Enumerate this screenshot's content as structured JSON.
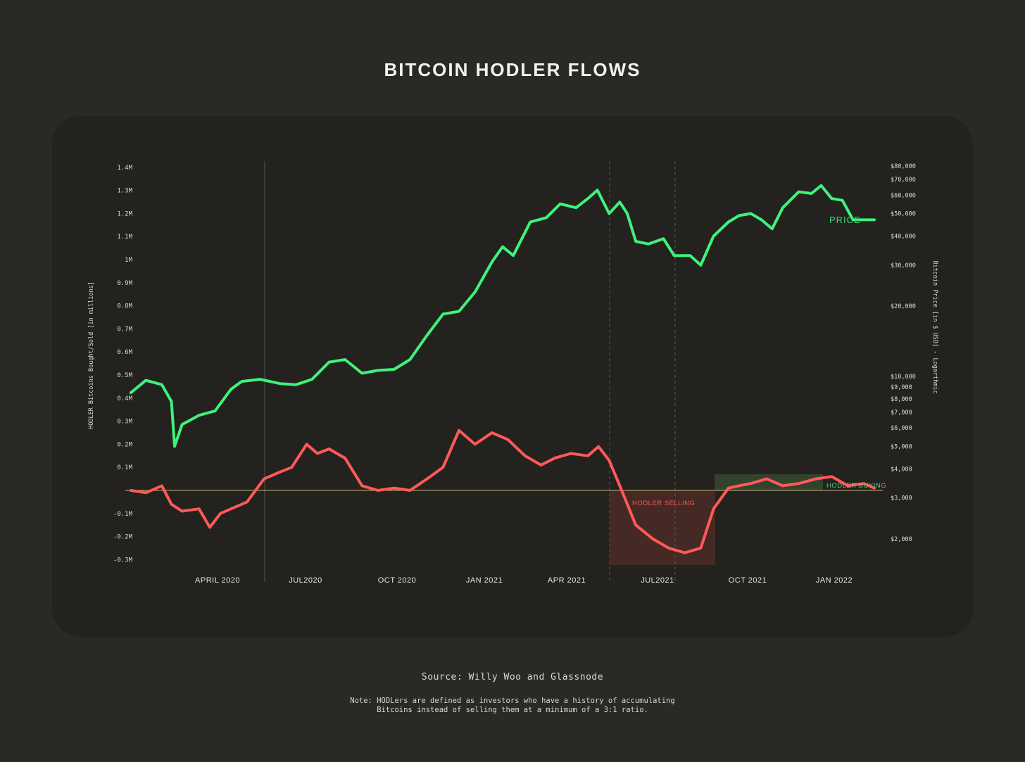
{
  "page": {
    "title": "BITCOIN HODLER FLOWS",
    "source": "Source: Willy Woo and Glassnode",
    "note_line1": "Note: HODLers are defined as investors who have a history of accumulating",
    "note_line2": "Bitcoins instead of selling them at a minimum of a 3:1 ratio."
  },
  "colors": {
    "background": "#2a2925",
    "panel": "#23221f",
    "price_line": "#3ff27a",
    "flow_line": "#ff5a57",
    "zero_line": "#c9b27a",
    "selling_zone": "#4a2a26",
    "buying_zone": "#35462f",
    "text": "#e8e8e2"
  },
  "chart_data": {
    "type": "line",
    "title": "BITCOIN HODLER FLOWS",
    "ylabel_left": "HODLER Bitcoins Bought/Sold [in millions]",
    "ylabel_right": "Bitcoin Price [in $ USD] - Logarthmic",
    "left_ticks": [
      "1.4M",
      "1.3M",
      "1.2M",
      "1.1M",
      "1M",
      "0.9M",
      "0.8M",
      "0.7M",
      "0.6M",
      "0.5M",
      "0.4M",
      "0.3M",
      "0.2M",
      "0.1M",
      "-0.1M",
      "-0.2M",
      "-0.3M"
    ],
    "right_ticks": [
      "$80,000",
      "$70,000",
      "$60,000",
      "$50,000",
      "$40,000",
      "$30,000",
      "$20,000",
      "$10,000",
      "$9,000",
      "$8,000",
      "$7,000",
      "$6,000",
      "$5,000",
      "$4,000",
      "$3,000",
      "$2,000"
    ],
    "x_ticks": [
      "APRIL 2020",
      "JUL2020",
      "OCT 2020",
      "JAN 2021",
      "APR 2021",
      "JUL2021",
      "OCT 2021",
      "JAN 2022"
    ],
    "ylim_left": [
      -0.3,
      1.4
    ],
    "yscale_right": "log",
    "annotations": {
      "price_label": "PRICE",
      "selling_label": "HODLER SELLING",
      "buying_label": "HODLER BUYING"
    },
    "series": [
      {
        "name": "PRICE",
        "unit": "USD",
        "x": [
          "2020-02-01",
          "2020-02-15",
          "2020-03-01",
          "2020-03-10",
          "2020-03-13",
          "2020-03-20",
          "2020-04-05",
          "2020-04-20",
          "2020-05-05",
          "2020-05-15",
          "2020-06-01",
          "2020-06-20",
          "2020-07-05",
          "2020-07-20",
          "2020-08-05",
          "2020-08-20",
          "2020-09-05",
          "2020-09-20",
          "2020-10-05",
          "2020-10-20",
          "2020-11-05",
          "2020-11-20",
          "2020-12-05",
          "2020-12-20",
          "2021-01-05",
          "2021-01-15",
          "2021-01-25",
          "2021-02-10",
          "2021-02-25",
          "2021-03-10",
          "2021-03-25",
          "2021-04-05",
          "2021-04-14",
          "2021-04-25",
          "2021-05-05",
          "2021-05-12",
          "2021-05-20",
          "2021-06-01",
          "2021-06-15",
          "2021-06-25",
          "2021-07-10",
          "2021-07-20",
          "2021-08-01",
          "2021-08-15",
          "2021-08-25",
          "2021-09-05",
          "2021-09-15",
          "2021-09-25",
          "2021-10-05",
          "2021-10-20",
          "2021-11-01",
          "2021-11-10",
          "2021-11-20",
          "2021-11-30",
          "2021-12-10",
          "2021-12-20",
          "2021-12-30"
        ],
        "values": [
          8500,
          9600,
          9200,
          7800,
          5000,
          6200,
          6800,
          7100,
          8800,
          9500,
          9700,
          9300,
          9200,
          9700,
          11500,
          11800,
          10300,
          10600,
          10700,
          11800,
          15000,
          18500,
          19000,
          23000,
          31000,
          36000,
          33000,
          46000,
          48000,
          55000,
          53000,
          58000,
          63000,
          50000,
          56000,
          50000,
          38000,
          37000,
          39000,
          33000,
          33000,
          30000,
          40000,
          46000,
          49000,
          50000,
          47000,
          43000,
          53000,
          62000,
          61000,
          66000,
          58000,
          57000,
          47000,
          47000,
          47000
        ]
      },
      {
        "name": "HODLER Bitcoins Bought/Sold",
        "unit": "millions BTC",
        "x": [
          "2020-02-01",
          "2020-02-15",
          "2020-03-01",
          "2020-03-10",
          "2020-03-20",
          "2020-04-05",
          "2020-04-15",
          "2020-04-25",
          "2020-05-05",
          "2020-05-20",
          "2020-06-05",
          "2020-06-20",
          "2020-07-01",
          "2020-07-15",
          "2020-07-25",
          "2020-08-05",
          "2020-08-20",
          "2020-09-05",
          "2020-09-20",
          "2020-10-05",
          "2020-10-20",
          "2020-11-05",
          "2020-11-20",
          "2020-12-05",
          "2020-12-20",
          "2021-01-05",
          "2021-01-20",
          "2021-02-05",
          "2021-02-20",
          "2021-03-05",
          "2021-03-20",
          "2021-04-05",
          "2021-04-15",
          "2021-04-25",
          "2021-05-05",
          "2021-05-20",
          "2021-06-05",
          "2021-06-20",
          "2021-07-05",
          "2021-07-20",
          "2021-08-01",
          "2021-08-15",
          "2021-08-25",
          "2021-09-05",
          "2021-09-20",
          "2021-10-05",
          "2021-10-20",
          "2021-11-05",
          "2021-11-20",
          "2021-12-05",
          "2021-12-20",
          "2021-12-30"
        ],
        "values": [
          0.0,
          -0.01,
          0.02,
          -0.06,
          -0.09,
          -0.08,
          -0.16,
          -0.1,
          -0.08,
          -0.05,
          0.05,
          0.08,
          0.1,
          0.2,
          0.16,
          0.18,
          0.14,
          0.02,
          0.0,
          0.01,
          0.0,
          0.05,
          0.1,
          0.26,
          0.2,
          0.25,
          0.22,
          0.15,
          0.11,
          0.14,
          0.16,
          0.15,
          0.19,
          0.13,
          0.02,
          -0.15,
          -0.21,
          -0.25,
          -0.27,
          -0.25,
          -0.08,
          0.01,
          0.02,
          0.03,
          0.05,
          0.02,
          0.03,
          0.05,
          0.06,
          0.02,
          0.03,
          0.01
        ]
      }
    ]
  }
}
